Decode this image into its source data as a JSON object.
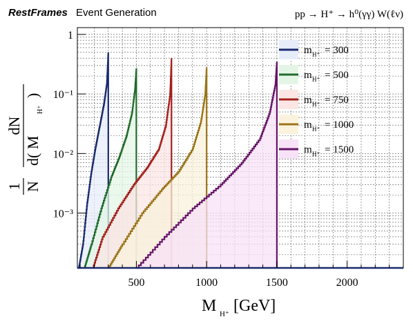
{
  "header": {
    "brand": "RestFrames",
    "subtitle": "Event Generation",
    "process": "pp → H⁺ → h⁰(γγ) W(ℓν)"
  },
  "chart_data": {
    "type": "area",
    "xlabel_main": "M",
    "xlabel_sub": "H⁺",
    "xlabel_unit": "[GeV]",
    "ylabel_num": "1",
    "ylabel_den": "N",
    "ylabel_dnum": "dN",
    "ylabel_dden": "d( M",
    "ylabel_dden_sub": "H⁺",
    "ylabel_dden_close": ")",
    "xlim": [
      80,
      2400
    ],
    "ylim": [
      0.00012,
      1.3
    ],
    "yscale": "log",
    "grid": true,
    "legend_placement": "top-right",
    "xticks": [
      500,
      1000,
      1500,
      2000
    ],
    "xtick_labels": [
      "500",
      "1000",
      "1500",
      "2000"
    ],
    "yticks": [
      0.001,
      0.01,
      0.1,
      1
    ],
    "ytick_labels": [
      "10⁻³",
      "10⁻²",
      "10⁻¹",
      "1"
    ],
    "series": [
      {
        "name": "m_H⁺ = 300",
        "legend_sub": "H⁺",
        "legend_value": "= 300",
        "mass": 300,
        "color": "#1a2a6c",
        "fill": "#e6ecfa",
        "x": [
          90,
          120,
          150,
          180,
          210,
          240,
          270,
          290,
          300
        ],
        "y": [
          0.00012,
          0.0003,
          0.0015,
          0.005,
          0.013,
          0.03,
          0.07,
          0.15,
          0.5
        ]
      },
      {
        "name": "m_H⁺ = 500",
        "legend_sub": "H⁺",
        "legend_value": "= 500",
        "mass": 500,
        "color": "#1f6b2a",
        "fill": "#e4f5e6",
        "x": [
          130,
          180,
          250,
          320,
          380,
          430,
          470,
          490,
          500
        ],
        "y": [
          0.00012,
          0.0003,
          0.0012,
          0.004,
          0.009,
          0.02,
          0.05,
          0.12,
          0.27
        ]
      },
      {
        "name": "m_H⁺ = 750",
        "legend_sub": "H⁺",
        "legend_value": "= 750",
        "mass": 750,
        "color": "#a3201c",
        "fill": "#fbe6e4",
        "x": [
          190,
          260,
          370,
          480,
          580,
          660,
          710,
          740,
          750
        ],
        "y": [
          0.00012,
          0.0004,
          0.0012,
          0.003,
          0.006,
          0.012,
          0.03,
          0.1,
          0.4
        ]
      },
      {
        "name": "m_H⁺ = 1000",
        "legend_sub": "H⁺",
        "legend_value": "= 1000",
        "mass": 1000,
        "color": "#9a7418",
        "fill": "#faf2dc",
        "x": [
          300,
          400,
          540,
          680,
          800,
          900,
          960,
          990,
          1000
        ],
        "y": [
          0.00012,
          0.0003,
          0.001,
          0.0025,
          0.005,
          0.012,
          0.035,
          0.1,
          0.28
        ]
      },
      {
        "name": "m_H⁺ = 1500",
        "legend_sub": "H⁺",
        "legend_value": "= 1500",
        "mass": 1500,
        "color": "#661466",
        "fill": "#f7e2f7",
        "x": [
          500,
          700,
          900,
          1100,
          1250,
          1380,
          1450,
          1490,
          1500
        ],
        "y": [
          0.00012,
          0.0004,
          0.0012,
          0.003,
          0.007,
          0.018,
          0.05,
          0.15,
          0.35
        ]
      }
    ]
  }
}
